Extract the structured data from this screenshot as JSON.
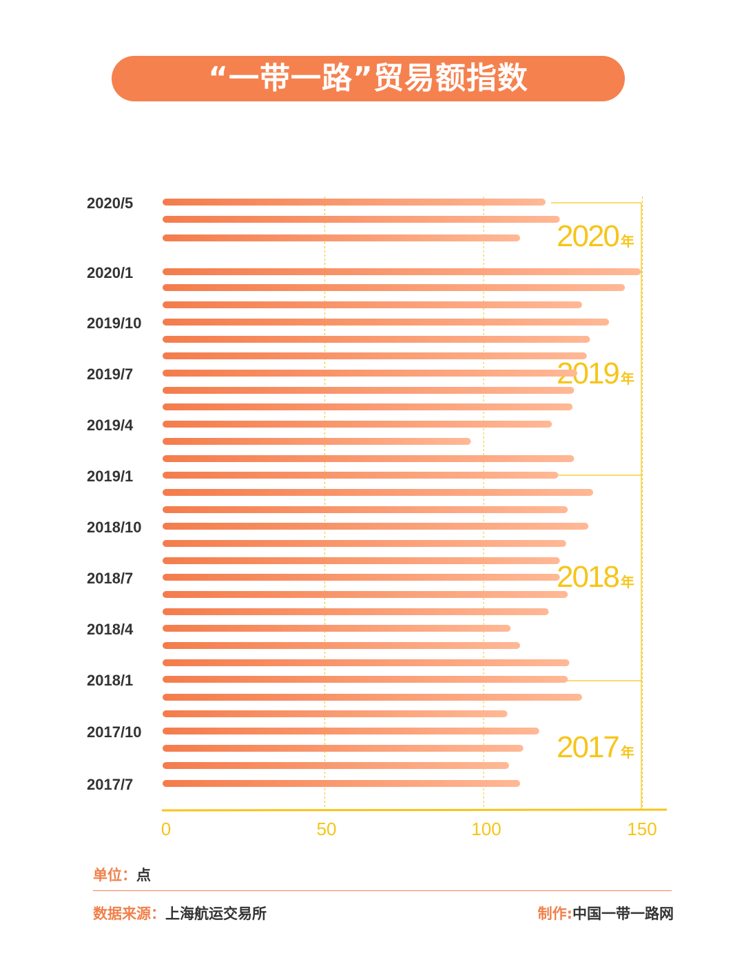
{
  "title": "“一带一路”贸易额指数",
  "colors": {
    "accent": "#f5814f",
    "bar_start": "#f47c4c",
    "bar_end": "#ffb895",
    "axis": "#f6c519",
    "group": "#f6c519"
  },
  "chart_data": {
    "type": "bar",
    "orientation": "horizontal",
    "categories": [
      "2020/5",
      "2020/4",
      "2020/3",
      "2020/1",
      "2019/12",
      "2019/11",
      "2019/10",
      "2019/9",
      "2019/8",
      "2019/7",
      "2019/6",
      "2019/5",
      "2019/4",
      "2019/3",
      "2019/2",
      "2019/1",
      "2018/12",
      "2018/11",
      "2018/10",
      "2018/9",
      "2018/8",
      "2018/7",
      "2018/6",
      "2018/5",
      "2018/4",
      "2018/3",
      "2018/2",
      "2018/1",
      "2017/12",
      "2017/11",
      "2017/10",
      "2017/9",
      "2017/8",
      "2017/7"
    ],
    "values": [
      119.5,
      124,
      111.5,
      149.5,
      144.5,
      131,
      139.5,
      133.5,
      132.5,
      129.5,
      128.5,
      128,
      121.5,
      96,
      128.5,
      123.5,
      134.5,
      126.5,
      133,
      126,
      124,
      124,
      126.5,
      120.5,
      108.5,
      111.5,
      127,
      126.5,
      131,
      107.5,
      117.5,
      112.5,
      108,
      111.5
    ],
    "tick_labels": [
      "2020/5",
      "2020/1",
      "2019/10",
      "2019/7",
      "2019/4",
      "2019/1",
      "2018/10",
      "2018/7",
      "2018/4",
      "2018/1",
      "2017/10",
      "2017/7"
    ],
    "xlim": [
      0,
      160
    ],
    "x_ticks": [
      "0",
      "50",
      "100",
      "150"
    ],
    "grid": "vertical dashed",
    "year_groups": [
      {
        "year": "2020",
        "suffix": "年"
      },
      {
        "year": "2019",
        "suffix": "年"
      },
      {
        "year": "2018",
        "suffix": "年"
      },
      {
        "year": "2017",
        "suffix": "年"
      }
    ]
  },
  "footer": {
    "unit_label": "单位：",
    "unit_value": "点",
    "source_label": "数据来源：",
    "source_value": "上海航运交易所",
    "maker_label": "制作:",
    "maker_value": "中国一带一路网"
  }
}
